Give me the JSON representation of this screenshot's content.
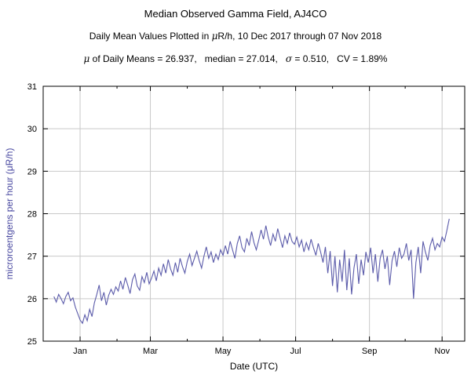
{
  "header": {
    "title": "Median Observed Gamma Field, AJ4CO",
    "subtitle_parts": [
      "Daily Mean Values Plotted in ",
      "μ",
      "R/h, 10 Dec 2017 through 07 Nov 2018"
    ],
    "stats_parts": [
      "μ",
      " of Daily Means = 26.937,   median = 27.014,   ",
      "σ",
      " = 0.510,   CV = 1.89%"
    ]
  },
  "chart_data": {
    "type": "line",
    "title": "Median Observed Gamma Field, AJ4CO",
    "subtitle": "Daily Mean Values Plotted in μR/h, 10 Dec 2017 through 07 Nov 2018",
    "xlabel": "Date (UTC)",
    "ylabel": "microroentgens per hour (μR/h)",
    "ylim": [
      25,
      31
    ],
    "y_ticks": [
      25,
      26,
      27,
      28,
      29,
      30,
      31
    ],
    "x_axis_range_days": [
      -9,
      345
    ],
    "x_major_ticks": [
      {
        "label": "Jan",
        "day": 22
      },
      {
        "label": "Mar",
        "day": 81
      },
      {
        "label": "May",
        "day": 142
      },
      {
        "label": "Jul",
        "day": 203
      },
      {
        "label": "Sep",
        "day": 265
      },
      {
        "label": "Nov",
        "day": 326
      }
    ],
    "x_minor_tick_days": [
      53,
      112,
      173,
      234,
      295
    ],
    "series_start_date": "2017-12-10",
    "series_end_date": "2018-11-07",
    "sample_interval_days": 2,
    "stats": {
      "mean": 26.937,
      "median": 27.014,
      "sigma": 0.51,
      "cv_percent": 1.89
    },
    "grid": true,
    "legend_position": "none",
    "line_color": "#5b5baa",
    "grid_color": "#c9c9c9",
    "axis_color": "#000000",
    "ylabel_color": "#4848a0",
    "values": [
      26.05,
      25.92,
      26.1,
      26.0,
      25.88,
      26.05,
      26.15,
      25.95,
      26.02,
      25.8,
      25.65,
      25.5,
      25.42,
      25.62,
      25.48,
      25.75,
      25.58,
      25.9,
      26.1,
      26.32,
      25.95,
      26.15,
      25.85,
      26.08,
      26.22,
      26.1,
      26.28,
      26.18,
      26.42,
      26.22,
      26.5,
      26.32,
      26.12,
      26.45,
      26.58,
      26.3,
      26.2,
      26.52,
      26.38,
      26.62,
      26.35,
      26.48,
      26.65,
      26.42,
      26.72,
      26.55,
      26.82,
      26.6,
      26.92,
      26.7,
      26.55,
      26.85,
      26.62,
      26.95,
      26.75,
      26.6,
      26.88,
      27.05,
      26.78,
      26.95,
      27.12,
      26.9,
      26.72,
      27.0,
      27.22,
      26.95,
      27.1,
      26.85,
      27.05,
      26.92,
      27.15,
      27.02,
      27.25,
      27.05,
      27.35,
      27.15,
      26.95,
      27.3,
      27.48,
      27.2,
      27.1,
      27.42,
      27.25,
      27.58,
      27.32,
      27.15,
      27.38,
      27.62,
      27.4,
      27.72,
      27.45,
      27.25,
      27.52,
      27.35,
      27.65,
      27.42,
      27.2,
      27.48,
      27.3,
      27.55,
      27.35,
      27.28,
      27.45,
      27.22,
      27.38,
      27.1,
      27.32,
      27.15,
      27.4,
      27.2,
      27.02,
      27.3,
      27.1,
      26.85,
      27.22,
      26.6,
      27.12,
      26.3,
      27.0,
      26.15,
      26.92,
      26.4,
      27.15,
      26.2,
      26.95,
      26.1,
      26.72,
      27.05,
      26.35,
      26.92,
      26.55,
      27.1,
      26.85,
      27.2,
      26.6,
      27.05,
      26.4,
      26.95,
      27.15,
      26.7,
      27.0,
      26.32,
      26.9,
      27.12,
      26.75,
      27.2,
      26.95,
      27.05,
      27.3,
      26.9,
      27.15,
      26.0,
      26.85,
      27.22,
      26.6,
      27.35,
      27.1,
      26.9,
      27.25,
      27.42,
      27.15,
      27.3,
      27.22,
      27.45,
      27.35,
      27.6,
      27.88
    ]
  }
}
